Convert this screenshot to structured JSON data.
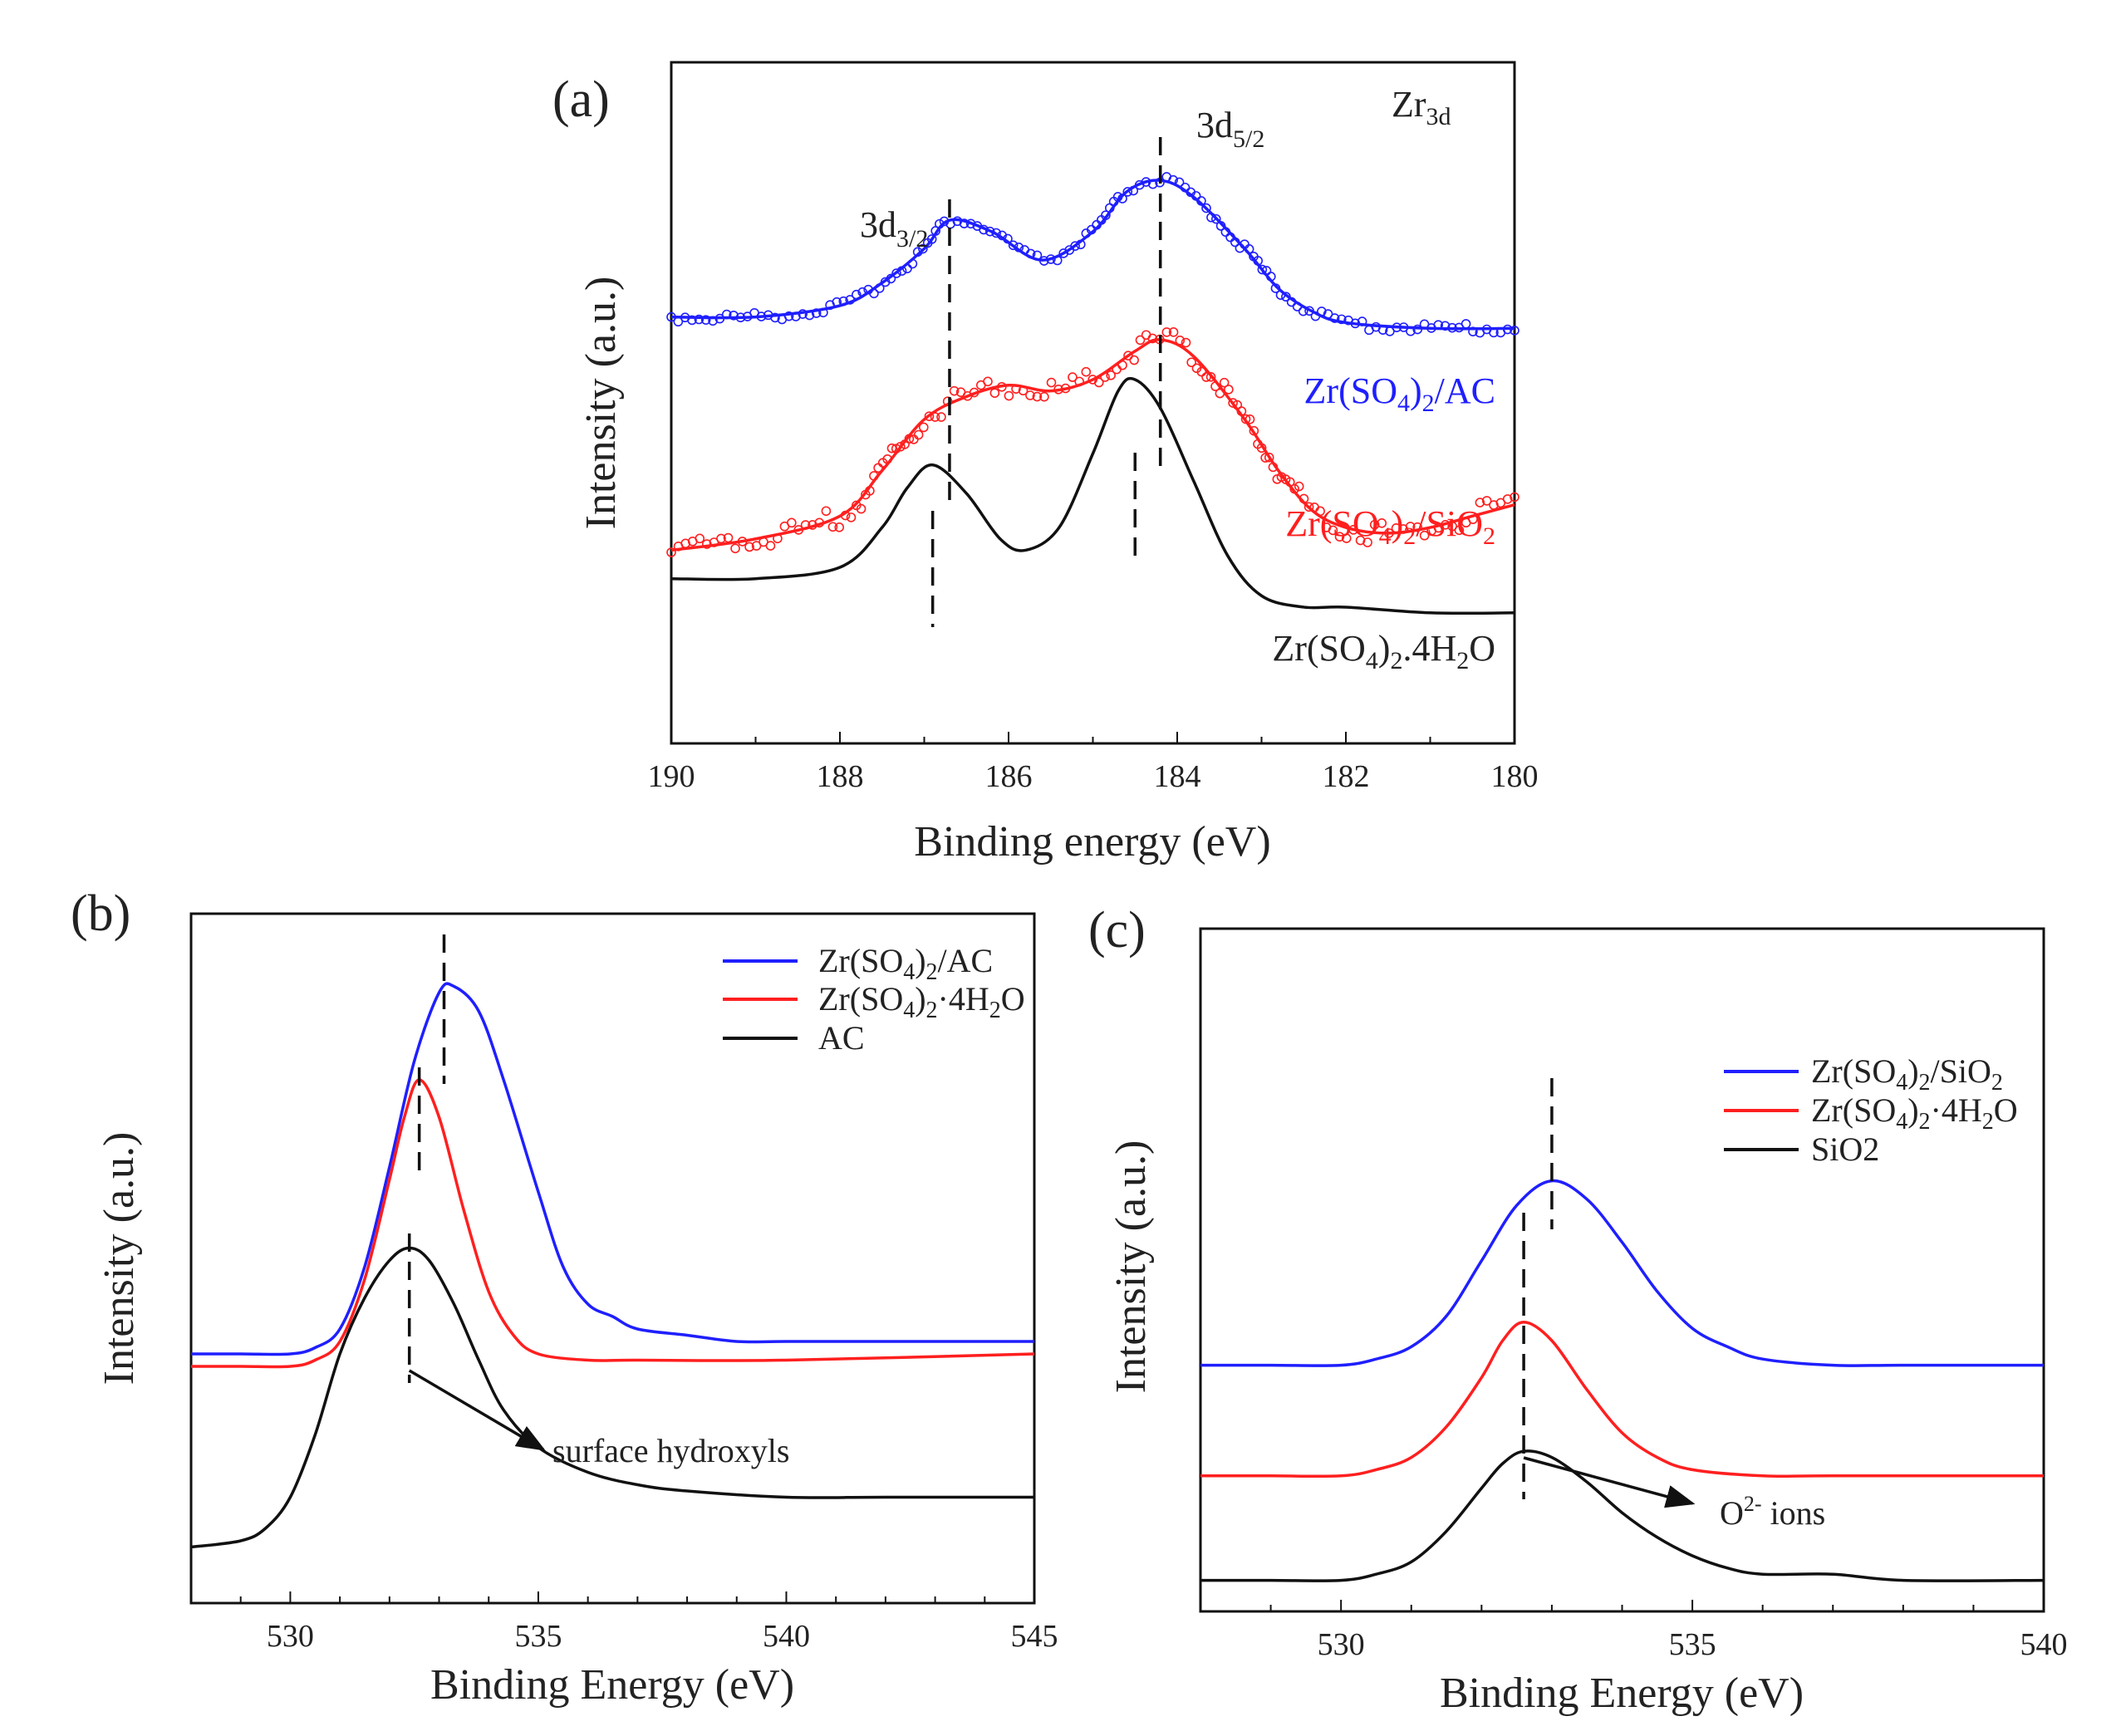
{
  "chart_data": [
    {
      "panel": "(a)",
      "type": "line",
      "xlabel": "Binding energy (eV)",
      "ylabel": "Intensity (a.u.)",
      "xlim": [
        190,
        180
      ],
      "x_reversed": true,
      "xticks": [
        190,
        188,
        186,
        184,
        182,
        180
      ],
      "corner_label": "Zr3d",
      "peak_labels": [
        {
          "text": "3d3/2",
          "x": 186.7
        },
        {
          "text": "3d5/2",
          "x": 184.2
        }
      ],
      "reference_lines": [
        186.7,
        184.2,
        186.9,
        184.5
      ],
      "series": [
        {
          "name": "Zr(SO4)2/AC",
          "color": "#1f1fff",
          "markers": "open-circle",
          "x": [
            190,
            189,
            188,
            187.5,
            187,
            186.7,
            186.2,
            185.6,
            185,
            184.6,
            184.2,
            183.8,
            183.2,
            182.8,
            182.4,
            182,
            181,
            180
          ],
          "y": [
            0.64,
            0.64,
            0.66,
            0.7,
            0.76,
            0.81,
            0.79,
            0.74,
            0.79,
            0.86,
            0.88,
            0.85,
            0.76,
            0.69,
            0.65,
            0.63,
            0.62,
            0.62
          ]
        },
        {
          "name": "Zr(SO4)2/SiO2",
          "color": "#ff1f1f",
          "markers": "open-circle",
          "x": [
            190,
            189,
            188,
            187.5,
            187,
            186.5,
            186,
            185.5,
            185,
            184.5,
            184.2,
            183.8,
            183.2,
            182.8,
            182.4,
            182,
            181.5,
            181,
            180.5,
            180
          ],
          "y": [
            0.23,
            0.25,
            0.29,
            0.37,
            0.46,
            0.5,
            0.52,
            0.51,
            0.53,
            0.58,
            0.6,
            0.57,
            0.46,
            0.37,
            0.3,
            0.27,
            0.26,
            0.27,
            0.29,
            0.31
          ]
        },
        {
          "name": "Zr(SO4)2.4H2O",
          "color": "#111111",
          "markers": "none",
          "x": [
            190,
            189,
            188,
            187.5,
            187.2,
            186.9,
            186.5,
            186.1,
            185.8,
            185.4,
            185,
            184.7,
            184.5,
            184.2,
            183.8,
            183.4,
            183,
            182.5,
            182,
            181,
            180
          ],
          "y": [
            0.18,
            0.18,
            0.2,
            0.27,
            0.34,
            0.38,
            0.33,
            0.25,
            0.23,
            0.27,
            0.4,
            0.51,
            0.53,
            0.48,
            0.35,
            0.22,
            0.15,
            0.13,
            0.13,
            0.12,
            0.12
          ]
        }
      ]
    },
    {
      "panel": "(b)",
      "type": "line",
      "xlabel": "Binding Energy (eV)",
      "ylabel": "Intensity (a.u.)",
      "xlim": [
        528,
        545
      ],
      "xticks": [
        530,
        535,
        540,
        545
      ],
      "reference_lines": [
        533.1,
        532.6,
        532.4
      ],
      "annotation": {
        "text": "surface hydroxyls",
        "from_x": 532.4,
        "to_x": 535.1
      },
      "series": [
        {
          "name": "Zr(SO4)2/AC",
          "color": "#1f1fff",
          "x": [
            528,
            529,
            530,
            530.5,
            531,
            531.5,
            532,
            532.5,
            533,
            533.3,
            533.8,
            534.3,
            535,
            535.5,
            536,
            536.5,
            537,
            538,
            539,
            540,
            542,
            545
          ],
          "y": [
            0.36,
            0.36,
            0.36,
            0.37,
            0.4,
            0.5,
            0.66,
            0.83,
            0.94,
            0.95,
            0.91,
            0.8,
            0.62,
            0.5,
            0.44,
            0.42,
            0.4,
            0.39,
            0.38,
            0.38,
            0.38,
            0.38
          ]
        },
        {
          "name": "Zr(SO4)2·4H2O",
          "color": "#ff1f1f",
          "x": [
            528,
            529,
            530,
            530.5,
            531,
            531.5,
            532,
            532.3,
            532.6,
            533,
            533.5,
            534,
            534.5,
            535,
            536,
            537,
            540,
            545
          ],
          "y": [
            0.34,
            0.34,
            0.34,
            0.35,
            0.38,
            0.48,
            0.64,
            0.74,
            0.8,
            0.74,
            0.59,
            0.46,
            0.39,
            0.36,
            0.35,
            0.35,
            0.35,
            0.36
          ]
        },
        {
          "name": "AC",
          "color": "#111111",
          "x": [
            528,
            529,
            529.5,
            530,
            530.5,
            531,
            531.5,
            532,
            532.4,
            532.8,
            533.3,
            533.8,
            534.3,
            535,
            536,
            537,
            538,
            540,
            542,
            545
          ],
          "y": [
            0.05,
            0.06,
            0.08,
            0.13,
            0.23,
            0.36,
            0.45,
            0.51,
            0.53,
            0.51,
            0.44,
            0.35,
            0.27,
            0.21,
            0.17,
            0.15,
            0.14,
            0.13,
            0.13,
            0.13
          ]
        }
      ]
    },
    {
      "panel": "(c)",
      "type": "line",
      "xlabel": "Binding Energy (eV)",
      "ylabel": "Intensity (a.u.)",
      "xlim": [
        528,
        540
      ],
      "xticks": [
        530,
        535,
        540
      ],
      "reference_lines": [
        533.0,
        532.6,
        532.6
      ],
      "annotation": {
        "text": "O2- ions",
        "from_x": 532.6,
        "to_x": 535.0
      },
      "series": [
        {
          "name": "Zr(SO4)2/SiO2",
          "color": "#1f1fff",
          "x": [
            528,
            529,
            530,
            530.5,
            531,
            531.5,
            532,
            532.5,
            533,
            533.5,
            534,
            534.5,
            535,
            535.5,
            536,
            537,
            538,
            540
          ],
          "y": [
            0.36,
            0.36,
            0.36,
            0.37,
            0.39,
            0.44,
            0.53,
            0.62,
            0.66,
            0.63,
            0.56,
            0.48,
            0.42,
            0.39,
            0.37,
            0.36,
            0.36,
            0.36
          ]
        },
        {
          "name": "Zr(SO4)2·4H2O",
          "color": "#ff1f1f",
          "x": [
            528,
            529,
            530,
            530.5,
            531,
            531.5,
            532,
            532.3,
            532.6,
            533,
            533.5,
            534,
            534.5,
            535,
            536,
            537,
            540
          ],
          "y": [
            0.18,
            0.18,
            0.18,
            0.19,
            0.21,
            0.26,
            0.34,
            0.4,
            0.43,
            0.4,
            0.32,
            0.25,
            0.21,
            0.19,
            0.18,
            0.18,
            0.18
          ]
        },
        {
          "name": "SiO2",
          "color": "#111111",
          "x": [
            528,
            529,
            530,
            530.5,
            531,
            531.5,
            532,
            532.3,
            532.6,
            533,
            533.5,
            534,
            534.5,
            535,
            535.5,
            536,
            537,
            538,
            540
          ],
          "y": [
            0.01,
            0.01,
            0.01,
            0.02,
            0.04,
            0.09,
            0.16,
            0.2,
            0.22,
            0.21,
            0.17,
            0.12,
            0.08,
            0.05,
            0.03,
            0.02,
            0.02,
            0.01,
            0.01
          ]
        }
      ]
    }
  ]
}
